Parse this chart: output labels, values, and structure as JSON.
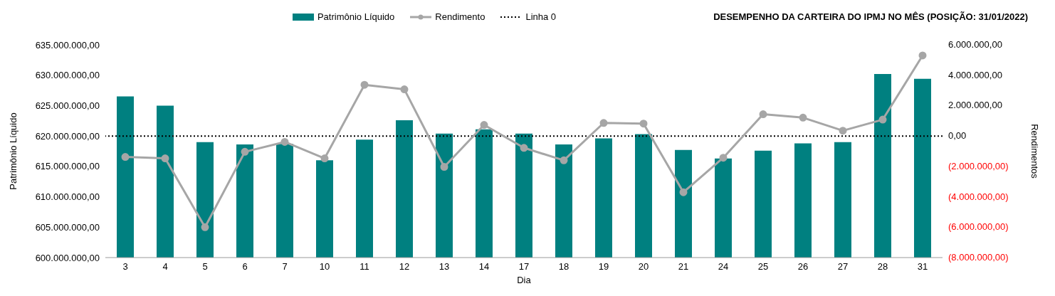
{
  "chart_data": {
    "type": "bar",
    "title": "DESEMPENHO DA CARTEIRA DO IPMJ NO MÊS (POSIÇÃO: 31/01/2022)",
    "xlabel": "Dia",
    "ylabel": "Patrimônio Líquido",
    "y2label": "Rendimentos",
    "categories": [
      "3",
      "4",
      "5",
      "6",
      "7",
      "10",
      "11",
      "12",
      "13",
      "14",
      "17",
      "18",
      "19",
      "20",
      "21",
      "24",
      "25",
      "26",
      "27",
      "28",
      "31"
    ],
    "series": [
      {
        "name": "Patrimônio Líquido",
        "color": "#008080",
        "values": [
          626500000,
          625000000,
          619000000,
          618600000,
          618700000,
          616000000,
          619400000,
          622600000,
          620400000,
          621100000,
          620400000,
          618600000,
          619600000,
          620300000,
          617700000,
          616300000,
          617600000,
          618800000,
          619000000,
          630200000,
          629400000
        ]
      },
      {
        "name": "Rendimento",
        "type": "line",
        "axis": "y2",
        "color": "#a6a6a6",
        "marker": "circle",
        "values": [
          -1380000,
          -1470000,
          -6000000,
          -1040000,
          -390000,
          -1470000,
          3370000,
          3070000,
          -2030000,
          730000,
          -780000,
          -1600000,
          860000,
          820000,
          -3700000,
          -1430000,
          1430000,
          1210000,
          350000,
          1080000,
          5300000
        ]
      }
    ],
    "ylim": [
      600000000,
      635000000
    ],
    "yticks": [
      {
        "value": 600000000,
        "label": "600.000.000,00"
      },
      {
        "value": 605000000,
        "label": "605.000.000,00"
      },
      {
        "value": 610000000,
        "label": "610.000.000,00"
      },
      {
        "value": 615000000,
        "label": "615.000.000,00"
      },
      {
        "value": 620000000,
        "label": "620.000.000,00"
      },
      {
        "value": 625000000,
        "label": "625.000.000,00"
      },
      {
        "value": 630000000,
        "label": "630.000.000,00"
      },
      {
        "value": 635000000,
        "label": "635.000.000,00"
      }
    ],
    "y2lim": [
      -8000000,
      6000000
    ],
    "y2ticks": [
      {
        "value": -8000000,
        "label": "(8.000.000,00)"
      },
      {
        "value": -6000000,
        "label": "(6.000.000,00)"
      },
      {
        "value": -4000000,
        "label": "(4.000.000,00)"
      },
      {
        "value": -2000000,
        "label": "(2.000.000,00)"
      },
      {
        "value": 0,
        "label": "0,00"
      },
      {
        "value": 2000000,
        "label": "2.000.000,00"
      },
      {
        "value": 4000000,
        "label": "4.000.000,00"
      },
      {
        "value": 6000000,
        "label": "6.000.000,00"
      }
    ],
    "ref_lines": [
      {
        "axis": "y2",
        "value": 0,
        "label": "Linha 0",
        "color": "#000000",
        "line_style": "dotted"
      }
    ],
    "legend": "top"
  }
}
